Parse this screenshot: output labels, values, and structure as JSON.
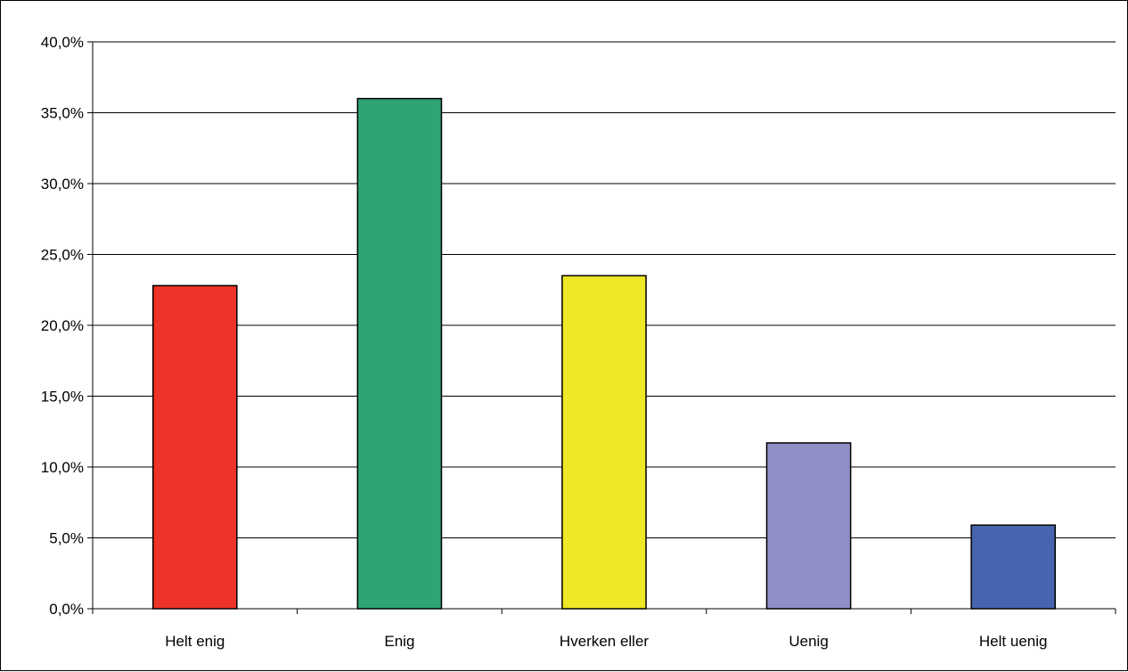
{
  "chart_data": {
    "type": "bar",
    "title": "",
    "xlabel": "",
    "ylabel": "",
    "categories": [
      "Helt enig",
      "Enig",
      "Hverken eller",
      "Uenig",
      "Helt uenig"
    ],
    "values": [
      22.8,
      36.0,
      23.5,
      11.7,
      5.9
    ],
    "colors": [
      "#ee3328",
      "#2ea373",
      "#eee826",
      "#8f8fc5",
      "#4565ae"
    ],
    "ylim": [
      0,
      40
    ],
    "yticks": [
      0,
      5,
      10,
      15,
      20,
      25,
      30,
      35,
      40
    ],
    "ytick_labels": [
      "0,0%",
      "5,0%",
      "10,0%",
      "15,0%",
      "20,0%",
      "25,0%",
      "30,0%",
      "35,0%",
      "40,0%"
    ],
    "grid": "horizontal",
    "legend": "none"
  }
}
